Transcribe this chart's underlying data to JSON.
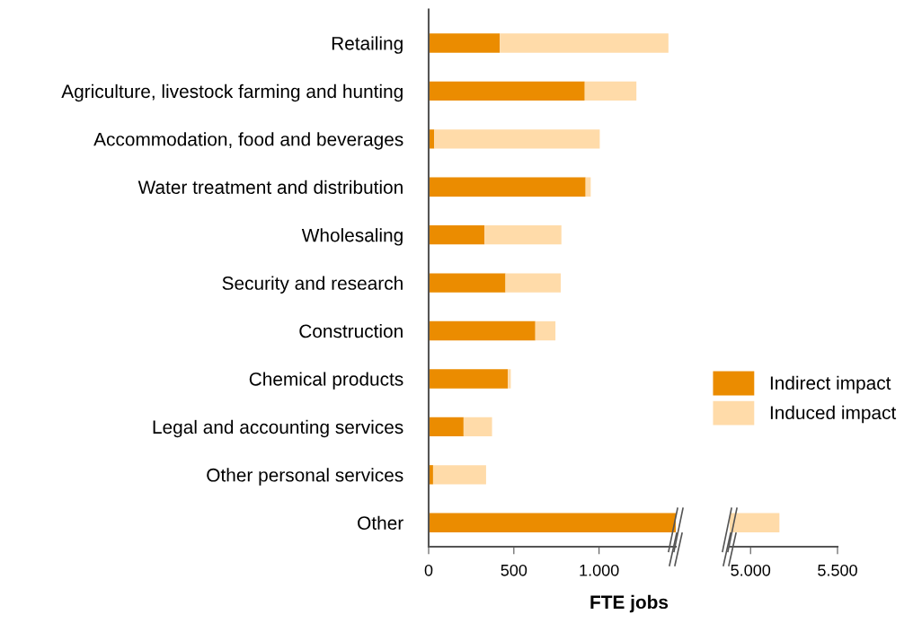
{
  "chart_data": [
    {
      "type": "bar",
      "orientation": "horizontal",
      "stacked": true,
      "categories": [
        "Retailing",
        "Agriculture, livestock farming and hunting",
        "Accommodation, food and beverages",
        "Water treatment and distribution",
        "Wholesaling",
        "Security and research",
        "Construction",
        "Chemical products",
        "Legal and accounting services",
        "Other personal services",
        "Other"
      ],
      "series": [
        {
          "name": "Indirect impact",
          "color": "#eb8c00",
          "values": [
            417,
            916,
            33,
            921,
            328,
            451,
            626,
            465,
            205,
            26,
            1450
          ]
        },
        {
          "name": "Induced impact",
          "color": "#ffdba9",
          "values": [
            990,
            303,
            971,
            30,
            451,
            324,
            118,
            17,
            167,
            311,
            null
          ]
        }
      ],
      "xlim": [
        0,
        1450
      ],
      "xticks": [
        0,
        500,
        {
          "value": 1000,
          "label": "1.000"
        }
      ],
      "xlabel": "FTE jobs",
      "legend": "right"
    },
    {
      "type": "bar",
      "orientation": "horizontal",
      "tick_labels": "x",
      "categories": [
        null,
        null,
        null,
        null,
        null,
        null,
        null,
        null,
        null,
        null,
        null
      ],
      "series": [
        {
          "color": "#ffdba9",
          "values": [
            null,
            null,
            null,
            null,
            null,
            null,
            null,
            null,
            null,
            null,
            5166
          ]
        }
      ],
      "xlim": [
        4880,
        5500
      ],
      "xticks": [
        {
          "value": 5000,
          "label": "5.000"
        },
        {
          "value": 5500,
          "label": "5.500"
        }
      ]
    }
  ]
}
